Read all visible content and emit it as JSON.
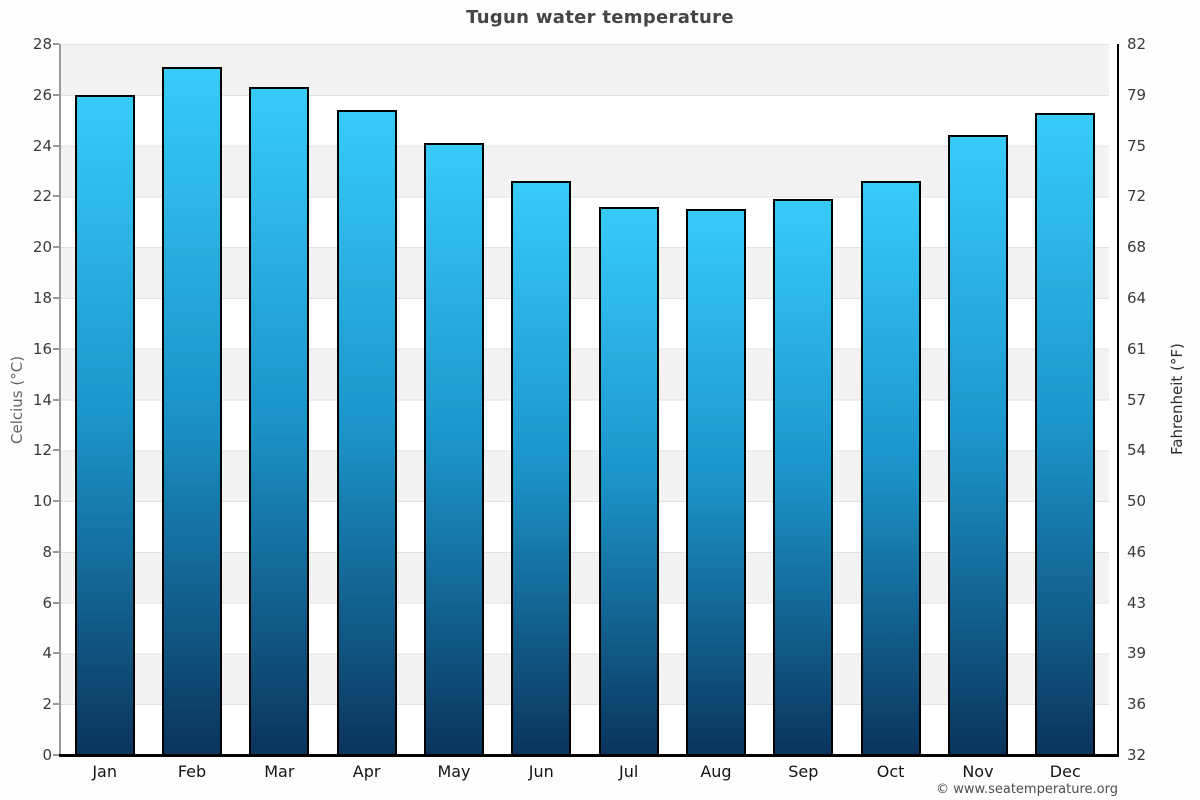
{
  "title": "Tugun water temperature",
  "credit": "© www.seatemperature.org",
  "chart_data": {
    "type": "bar",
    "title": "Tugun water temperature",
    "xlabel": "",
    "ylabel_left": "Celcius (°C)",
    "ylabel_right": "Fahrenheit (°F)",
    "categories": [
      "Jan",
      "Feb",
      "Mar",
      "Apr",
      "May",
      "Jun",
      "Jul",
      "Aug",
      "Sep",
      "Oct",
      "Nov",
      "Dec"
    ],
    "values": [
      26.0,
      27.1,
      26.3,
      25.4,
      24.1,
      22.6,
      21.6,
      21.5,
      21.9,
      22.6,
      24.4,
      25.3
    ],
    "unit": "°C",
    "ylim_left": [
      0,
      28
    ],
    "ytick_step_left": 2,
    "yticks_left": [
      "0",
      "2",
      "4",
      "6",
      "8",
      "10",
      "12",
      "14",
      "16",
      "18",
      "20",
      "22",
      "24",
      "26",
      "28"
    ],
    "yticks_right": [
      "32",
      "36",
      "39",
      "43",
      "46",
      "50",
      "54",
      "57",
      "61",
      "64",
      "68",
      "72",
      "75",
      "79",
      "82"
    ],
    "legend": "none",
    "grid": "horizontal-bands-every-2C",
    "colors": {
      "bar_gradient_top": "#38cbf8",
      "bar_gradient_bottom": "#0a345c",
      "bar_border": "#000000",
      "band_shaded": "#f3f3f3",
      "band_plain": "#ffffff",
      "gridline": "#e2e2e2",
      "left_axis": "#999999",
      "right_axis": "#000000",
      "baseline": "#000000",
      "title_text": "#454545",
      "tick_text": "#3a3a3a",
      "credit_text": "#4d4d4d"
    }
  }
}
